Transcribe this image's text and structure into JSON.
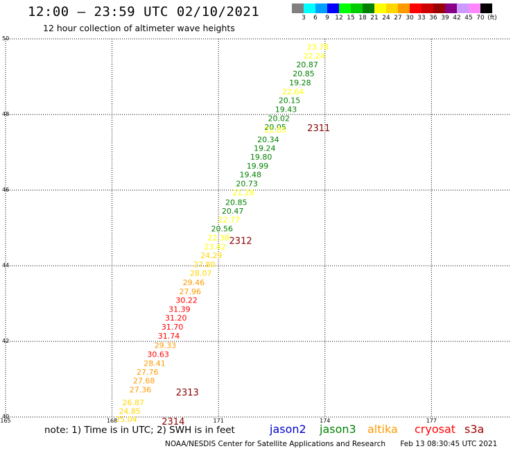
{
  "title": "12:00 – 23:59 UTC 02/10/2021",
  "subtitle": "12 hour collection of altimeter wave heights",
  "legend": {
    "colors": [
      "#808080",
      "#00ffff",
      "#00a0ff",
      "#0000ff",
      "#00ff00",
      "#00cc00",
      "#008000",
      "#ffff00",
      "#ffd700",
      "#ff9900",
      "#ff0000",
      "#cc0000",
      "#990000",
      "#880088",
      "#cc99ff",
      "#ff88ff",
      "#000000"
    ],
    "labels": [
      "3",
      "6",
      "9",
      "12",
      "15",
      "18",
      "21",
      "24",
      "27",
      "30",
      "33",
      "36",
      "39",
      "42",
      "45",
      "70",
      "(ft)"
    ]
  },
  "axes": {
    "y_labels": [
      "50",
      "48",
      "46",
      "44",
      "42",
      "40"
    ],
    "x_labels": [
      "165",
      "168",
      "171",
      "174",
      "177"
    ]
  },
  "chart_data": {
    "type": "scatter",
    "xlim": [
      165,
      179.2
    ],
    "ylim": [
      40,
      50
    ],
    "points": [
      {
        "lon": 173.8,
        "lat": 49.72,
        "v": "23.78",
        "color": "#ffff00"
      },
      {
        "lon": 173.7,
        "lat": 49.48,
        "v": "22.24",
        "color": "#ffff00"
      },
      {
        "lon": 173.5,
        "lat": 49.25,
        "v": "20.87",
        "color": "#008000"
      },
      {
        "lon": 173.4,
        "lat": 49.01,
        "v": "20.85",
        "color": "#008000"
      },
      {
        "lon": 173.3,
        "lat": 48.77,
        "v": "19.28",
        "color": "#008000"
      },
      {
        "lon": 173.1,
        "lat": 48.53,
        "v": "22.64",
        "color": "#ffff00"
      },
      {
        "lon": 173.0,
        "lat": 48.3,
        "v": "20.15",
        "color": "#008000"
      },
      {
        "lon": 172.9,
        "lat": 48.06,
        "v": "19.43",
        "color": "#008000"
      },
      {
        "lon": 172.7,
        "lat": 47.83,
        "v": "20.02",
        "color": "#008000"
      },
      {
        "lon": 172.6,
        "lat": 47.6,
        "v": "20.05",
        "color": "#008000"
      },
      {
        "lon": 172.6,
        "lat": 47.52,
        "v": "21.85",
        "color": "#ffff00"
      },
      {
        "lon": 172.4,
        "lat": 47.27,
        "v": "20.34",
        "color": "#008000"
      },
      {
        "lon": 172.3,
        "lat": 47.04,
        "v": "19.24",
        "color": "#008000"
      },
      {
        "lon": 172.2,
        "lat": 46.81,
        "v": "19.80",
        "color": "#008000"
      },
      {
        "lon": 172.1,
        "lat": 46.57,
        "v": "19.99",
        "color": "#008000"
      },
      {
        "lon": 171.9,
        "lat": 46.34,
        "v": "19.48",
        "color": "#008000"
      },
      {
        "lon": 171.8,
        "lat": 46.1,
        "v": "20.73",
        "color": "#008000"
      },
      {
        "lon": 171.7,
        "lat": 45.86,
        "v": "21.28",
        "color": "#ffff00"
      },
      {
        "lon": 171.5,
        "lat": 45.61,
        "v": "20.85",
        "color": "#008000"
      },
      {
        "lon": 171.4,
        "lat": 45.38,
        "v": "20.47",
        "color": "#008000"
      },
      {
        "lon": 171.3,
        "lat": 45.15,
        "v": "22.77",
        "color": "#ffff00"
      },
      {
        "lon": 171.1,
        "lat": 44.91,
        "v": "20.56",
        "color": "#008000"
      },
      {
        "lon": 171.0,
        "lat": 44.67,
        "v": "22.38",
        "color": "#ffff00"
      },
      {
        "lon": 170.9,
        "lat": 44.43,
        "v": "23.42",
        "color": "#ffff00"
      },
      {
        "lon": 170.8,
        "lat": 44.2,
        "v": "24.29",
        "color": "#ffd700"
      },
      {
        "lon": 170.6,
        "lat": 43.96,
        "v": "27.80",
        "color": "#ffd700"
      },
      {
        "lon": 170.5,
        "lat": 43.73,
        "v": "28.07",
        "color": "#ffd700"
      },
      {
        "lon": 170.3,
        "lat": 43.49,
        "v": "29.46",
        "color": "#ff9900"
      },
      {
        "lon": 170.2,
        "lat": 43.25,
        "v": "27.96",
        "color": "#ff9900"
      },
      {
        "lon": 170.1,
        "lat": 43.02,
        "v": "30.22",
        "color": "#ff0000"
      },
      {
        "lon": 169.9,
        "lat": 42.78,
        "v": "31.39",
        "color": "#ff0000"
      },
      {
        "lon": 169.8,
        "lat": 42.55,
        "v": "31.20",
        "color": "#ff0000"
      },
      {
        "lon": 169.7,
        "lat": 42.31,
        "v": "31.70",
        "color": "#ff0000"
      },
      {
        "lon": 169.6,
        "lat": 42.07,
        "v": "31.74",
        "color": "#ff0000"
      },
      {
        "lon": 169.5,
        "lat": 41.83,
        "v": "29.33",
        "color": "#ff9900"
      },
      {
        "lon": 169.3,
        "lat": 41.59,
        "v": "30.63",
        "color": "#ff0000"
      },
      {
        "lon": 169.2,
        "lat": 41.35,
        "v": "28.41",
        "color": "#ff9900"
      },
      {
        "lon": 169.0,
        "lat": 41.12,
        "v": "27.76",
        "color": "#ff9900"
      },
      {
        "lon": 168.9,
        "lat": 40.89,
        "v": "27.68",
        "color": "#ff9900"
      },
      {
        "lon": 168.8,
        "lat": 40.65,
        "v": "27.36",
        "color": "#ff9900"
      },
      {
        "lon": 168.6,
        "lat": 40.31,
        "v": "26.87",
        "color": "#ffd700"
      },
      {
        "lon": 168.5,
        "lat": 40.08,
        "v": "24.85",
        "color": "#ffd700"
      },
      {
        "lon": 168.4,
        "lat": 39.87,
        "v": "25.04",
        "color": "#ffd700"
      }
    ],
    "pass_labels": [
      {
        "lon": 173.5,
        "lat": 47.56,
        "text": "2311"
      },
      {
        "lon": 171.3,
        "lat": 44.58,
        "text": "2312"
      },
      {
        "lon": 169.8,
        "lat": 40.57,
        "text": "2313"
      },
      {
        "lon": 169.4,
        "lat": 39.8,
        "text": "2314"
      }
    ]
  },
  "note": "note:  1) Time is in UTC;  2) SWH is in feet",
  "satellites": [
    {
      "name": "jason2",
      "color": "#0000cc"
    },
    {
      "name": "jason3",
      "color": "#008000"
    },
    {
      "name": "altika",
      "color": "#ff9900"
    },
    {
      "name": "cryosat",
      "color": "#ff0000"
    },
    {
      "name": "s3a",
      "color": "#990000"
    }
  ],
  "footer": {
    "credit": "NOAA/NESDIS Center for Satellite Applications and Research",
    "timestamp": "Feb 13 08:30:45 UTC 2021"
  }
}
